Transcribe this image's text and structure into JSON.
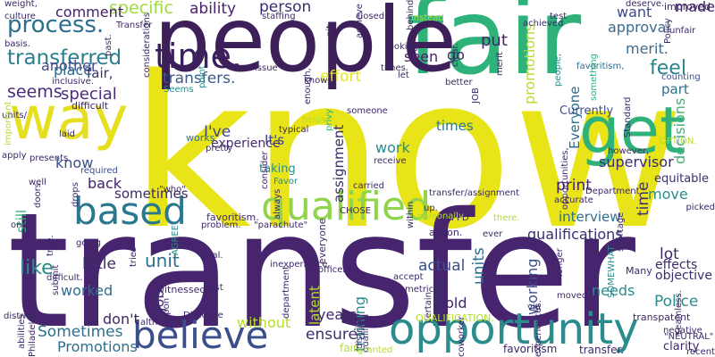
{
  "words": [
    {
      "text": "know",
      "color": "#e8e418"
    },
    {
      "text": "transfer",
      "color": "#46246e"
    },
    {
      "text": "fair",
      "color": "#2fb27a"
    },
    {
      "text": "people",
      "color": "#3d1f5a"
    },
    {
      "text": "way",
      "color": "#e6df1f"
    },
    {
      "text": "get",
      "color": "#2fb27a"
    },
    {
      "text": "opportunity",
      "color": "#2a8c8c"
    },
    {
      "text": "believe",
      "color": "#3b4e8c"
    },
    {
      "text": "qualified",
      "color": "#8fd44a"
    },
    {
      "text": "based",
      "color": "#2a788e"
    },
    {
      "text": "time.",
      "color": "#3b1e5e"
    },
    {
      "text": "process.",
      "color": "#2c6f8e"
    },
    {
      "text": "transferred",
      "color": "#2b7e8c"
    },
    {
      "text": "seems",
      "color": "#4b2b7f"
    },
    {
      "text": "specific",
      "color": "#9ed93e"
    },
    {
      "text": "ability",
      "color": "#4a2170"
    },
    {
      "text": "person",
      "color": "#3b2a70"
    },
    {
      "text": "comment",
      "color": "#44206b"
    },
    {
      "text": "another",
      "color": "#3f4a89"
    },
    {
      "text": "transfers.",
      "color": "#3b5a8c"
    },
    {
      "text": "place",
      "color": "#2f6c8e"
    },
    {
      "text": "fair,",
      "color": "#3c2f73"
    },
    {
      "text": "special",
      "color": "#4b2b7f"
    },
    {
      "text": "effort",
      "color": "#e3e51e"
    },
    {
      "text": "feel",
      "color": "#29858b"
    },
    {
      "text": "approval",
      "color": "#3d6b8d"
    },
    {
      "text": "want",
      "color": "#3f4789"
    },
    {
      "text": "merit.",
      "color": "#3e6b8c"
    },
    {
      "text": "put",
      "color": "#44226b"
    },
    {
      "text": "seen",
      "color": "#49206b"
    },
    {
      "text": "go",
      "color": "#3d2867"
    },
    {
      "text": "made",
      "color": "#3d2867"
    },
    {
      "text": "promotions",
      "color": "#b5dd2b"
    },
    {
      "text": "Everyone",
      "color": "#2c6f8e"
    },
    {
      "text": "part",
      "color": "#2c6f8e"
    },
    {
      "text": "decisions",
      "color": "#41b07a"
    },
    {
      "text": "supervisor",
      "color": "#3b2e6e"
    },
    {
      "text": "equitable",
      "color": "#3b2e6e"
    },
    {
      "text": "I've",
      "color": "#3f4789"
    },
    {
      "text": "It's",
      "color": "#3f4789"
    },
    {
      "text": "experience",
      "color": "#472b74"
    },
    {
      "text": "work",
      "color": "#2a8c8c"
    },
    {
      "text": "times",
      "color": "#29788e"
    },
    {
      "text": "time",
      "color": "#3c2f73"
    },
    {
      "text": "print",
      "color": "#44206b"
    },
    {
      "text": "assignment",
      "color": "#3d2867"
    },
    {
      "text": "move",
      "color": "#2a8c8c"
    },
    {
      "text": "qualifications",
      "color": "#3b2e6e"
    },
    {
      "text": "interview",
      "color": "#2c6f8e"
    },
    {
      "text": "unit",
      "color": "#2c6f8e"
    },
    {
      "text": "like",
      "color": "#2a8c8c"
    },
    {
      "text": "still",
      "color": "#2fb27a"
    },
    {
      "text": "know",
      "color": "#3b4e8c"
    },
    {
      "text": "back",
      "color": "#44206b"
    },
    {
      "text": "sometimes",
      "color": "#3d2867"
    },
    {
      "text": "little",
      "color": "#3d2867"
    },
    {
      "text": "actual",
      "color": "#3b4e8c"
    },
    {
      "text": "units",
      "color": "#2c6f8e"
    },
    {
      "text": "working",
      "color": "#3b4e8c"
    },
    {
      "text": "lot",
      "color": "#3d2867"
    },
    {
      "text": "effects",
      "color": "#3d2867"
    },
    {
      "text": "objective",
      "color": "#3b2e6e"
    },
    {
      "text": "Police",
      "color": "#2a8c8c"
    },
    {
      "text": "needs",
      "color": "#2a8c8c"
    },
    {
      "text": "hold",
      "color": "#3d2867"
    },
    {
      "text": "worked",
      "color": "#2c6f8e"
    },
    {
      "text": "training",
      "color": "#2a8c8c"
    },
    {
      "text": "job",
      "color": "#3b2e6e"
    },
    {
      "text": "latent",
      "color": "#b5dd2b"
    },
    {
      "text": "don't",
      "color": "#3d2867"
    },
    {
      "text": "without",
      "color": "#b5dd2b"
    },
    {
      "text": "years",
      "color": "#3d2867"
    },
    {
      "text": "ensure",
      "color": "#3b2e6e"
    },
    {
      "text": "Sometimes",
      "color": "#2c6f8e"
    },
    {
      "text": "Promotions",
      "color": "#2c6f8e"
    },
    {
      "text": "getting",
      "color": "#3b2e6e"
    },
    {
      "text": "taking",
      "color": "#2a8c8c"
    },
    {
      "text": "works",
      "color": "#2c6f8e"
    },
    {
      "text": "favoritism.",
      "color": "#3d2867"
    },
    {
      "text": "fair.",
      "color": "#b5dd2b"
    },
    {
      "text": "favoritism",
      "color": "#3d2867"
    },
    {
      "text": "transfer.",
      "color": "#3d2867"
    },
    {
      "text": "clarity",
      "color": "#3d2867"
    },
    {
      "text": "Currently",
      "color": "#3b4e8c"
    },
    {
      "text": "JOB",
      "color": "#3d2867"
    },
    {
      "text": "better",
      "color": "#3d2867"
    },
    {
      "text": "clear.",
      "color": "#3d2867"
    },
    {
      "text": "merit",
      "color": "#3d2867"
    },
    {
      "text": "achieved",
      "color": "#3d2867"
    },
    {
      "text": "something",
      "color": "#2fb27a"
    },
    {
      "text": "people,",
      "color": "#2a8c8c"
    },
    {
      "text": "favoritism,",
      "color": "#2c6f8e"
    },
    {
      "text": "Policy",
      "color": "#3d2867"
    },
    {
      "text": "unfair",
      "color": "#3d2867"
    },
    {
      "text": "improved",
      "color": "#3d2867"
    },
    {
      "text": "deserve.",
      "color": "#3d2867"
    },
    {
      "text": "Standard",
      "color": "#3d2867"
    },
    {
      "text": "counting",
      "color": "#3b4e8c"
    },
    {
      "text": "OPTION.",
      "color": "#b5dd2b"
    },
    {
      "text": "test",
      "color": "#3d2867"
    },
    {
      "text": "culture",
      "color": "#3d2867"
    },
    {
      "text": "weight,",
      "color": "#3d2867"
    },
    {
      "text": "basis.",
      "color": "#3d2867"
    },
    {
      "text": "units/",
      "color": "#3d2867"
    },
    {
      "text": "important",
      "color": "#b5dd2b"
    },
    {
      "text": "inclusive.",
      "color": "#3d2867"
    },
    {
      "text": "difficult",
      "color": "#3d2867"
    },
    {
      "text": "considerations",
      "color": "#3d2867"
    },
    {
      "text": "staffing",
      "color": "#3d2867"
    },
    {
      "text": "Transfer",
      "color": "#3d2867"
    },
    {
      "text": "past.",
      "color": "#3d2867"
    },
    {
      "text": "achieve",
      "color": "#3d2867"
    },
    {
      "text": "closed",
      "color": "#3d2867"
    },
    {
      "text": "behind",
      "color": "#3d2867"
    },
    {
      "text": "instead",
      "color": "#b5dd2b"
    },
    {
      "text": "looking",
      "color": "#3d2867"
    },
    {
      "text": "enough,",
      "color": "#3d2867"
    },
    {
      "text": "knows",
      "color": "#3d2867"
    },
    {
      "text": "times.",
      "color": "#3d2867"
    },
    {
      "text": "let",
      "color": "#3d2867"
    },
    {
      "text": "issue",
      "color": "#3d2867"
    },
    {
      "text": "point",
      "color": "#2a8c8c"
    },
    {
      "text": "Seems",
      "color": "#2a8c8c"
    },
    {
      "text": "laid",
      "color": "#3d2867"
    },
    {
      "text": "typical",
      "color": "#3d2867"
    },
    {
      "text": "helps",
      "color": "#b5dd2b"
    },
    {
      "text": "privy",
      "color": "#2fb27a"
    },
    {
      "text": "pretty",
      "color": "#3d2867"
    },
    {
      "text": "consider",
      "color": "#3d2867"
    },
    {
      "text": "receive",
      "color": "#3d2867"
    },
    {
      "text": "required",
      "color": "#3b4e8c"
    },
    {
      "text": "drops",
      "color": "#3d2867"
    },
    {
      "text": "doors",
      "color": "#3d2867"
    },
    {
      "text": "\"who\"",
      "color": "#3d2867"
    },
    {
      "text": "Favor",
      "color": "#2a8c8c"
    },
    {
      "text": "always",
      "color": "#3d2867"
    },
    {
      "text": "carried",
      "color": "#3d2867"
    },
    {
      "text": "within",
      "color": "#3d2867"
    },
    {
      "text": "transfer/assignment",
      "color": "#3d2867"
    },
    {
      "text": "accurate",
      "color": "#3d2867"
    },
    {
      "text": "shortage",
      "color": "#3d2867"
    },
    {
      "text": "PPD",
      "color": "#3d2867"
    },
    {
      "text": "up.",
      "color": "#3d2867"
    },
    {
      "text": "there.",
      "color": "#b5dd2b"
    },
    {
      "text": "personally",
      "color": "#b5dd2b"
    },
    {
      "text": "ever",
      "color": "#3d2867"
    },
    {
      "text": "CHOSE",
      "color": "#3d2867"
    },
    {
      "text": "action.",
      "color": "#3d2867"
    },
    {
      "text": "everyone",
      "color": "#3d2867"
    },
    {
      "text": "\"parachute\"",
      "color": "#3d2867"
    },
    {
      "text": "problem.",
      "color": "#3d2867"
    },
    {
      "text": "AGREE",
      "color": "#2a8c8c"
    },
    {
      "text": "true.",
      "color": "#3d2867"
    },
    {
      "text": "one",
      "color": "#3d2867"
    },
    {
      "text": "going",
      "color": "#3d2867"
    },
    {
      "text": "submit",
      "color": "#3d2867"
    },
    {
      "text": "difficult.",
      "color": "#3d2867"
    },
    {
      "text": "tries",
      "color": "#3d2867"
    },
    {
      "text": "goal.",
      "color": "#3d2867"
    },
    {
      "text": "witnessed",
      "color": "#3d2867"
    },
    {
      "text": "upon",
      "color": "#3d2867"
    },
    {
      "text": "Directive",
      "color": "#3d2867"
    },
    {
      "text": "although",
      "color": "#3d2867"
    },
    {
      "text": "best",
      "color": "#3d2867"
    },
    {
      "text": "inexperience",
      "color": "#3d2867"
    },
    {
      "text": "department",
      "color": "#3d2867"
    },
    {
      "text": "officers",
      "color": "#3d2867"
    },
    {
      "text": "district",
      "color": "#3d2867"
    },
    {
      "text": "qualified",
      "color": "#3d2867"
    },
    {
      "text": "metrics",
      "color": "#3d2867"
    },
    {
      "text": "certain",
      "color": "#3d2867"
    },
    {
      "text": "accept",
      "color": "#3d2867"
    },
    {
      "text": "amount",
      "color": "#3d2867"
    },
    {
      "text": "QUALIFICATION.",
      "color": "#b5dd2b"
    },
    {
      "text": "granted",
      "color": "#b5dd2b"
    },
    {
      "text": "coworker",
      "color": "#3d2867"
    },
    {
      "text": "moved",
      "color": "#3d2867"
    },
    {
      "text": "via",
      "color": "#3d2867"
    },
    {
      "text": "experiences.",
      "color": "#3d2867"
    },
    {
      "text": "transpatent",
      "color": "#3d2867"
    },
    {
      "text": "recent",
      "color": "#3d2867"
    },
    {
      "text": "seamless.",
      "color": "#3d2867"
    },
    {
      "text": "negative",
      "color": "#3d2867"
    },
    {
      "text": "\"NEUTRAL\"",
      "color": "#3d2867"
    },
    {
      "text": "longer",
      "color": "#3d2867"
    },
    {
      "text": "Many",
      "color": "#3d2867"
    },
    {
      "text": "SOMEWHAT",
      "color": "#2a8c8c"
    },
    {
      "text": "picked",
      "color": "#3d2867"
    },
    {
      "text": "however,",
      "color": "#3d2867"
    },
    {
      "text": "opportunities,",
      "color": "#3d2867"
    },
    {
      "text": "Department",
      "color": "#3d2867"
    },
    {
      "text": "Philadelphia",
      "color": "#3d2867"
    },
    {
      "text": "district.",
      "color": "#3d2867"
    },
    {
      "text": "abilities",
      "color": "#3d2867"
    },
    {
      "text": "apply",
      "color": "#3d2867"
    },
    {
      "text": "presents",
      "color": "#3d2867"
    },
    {
      "text": "well",
      "color": "#3d2867"
    },
    {
      "text": "nit",
      "color": "#3d2867"
    },
    {
      "text": "someone",
      "color": "#3d2867"
    }
  ]
}
